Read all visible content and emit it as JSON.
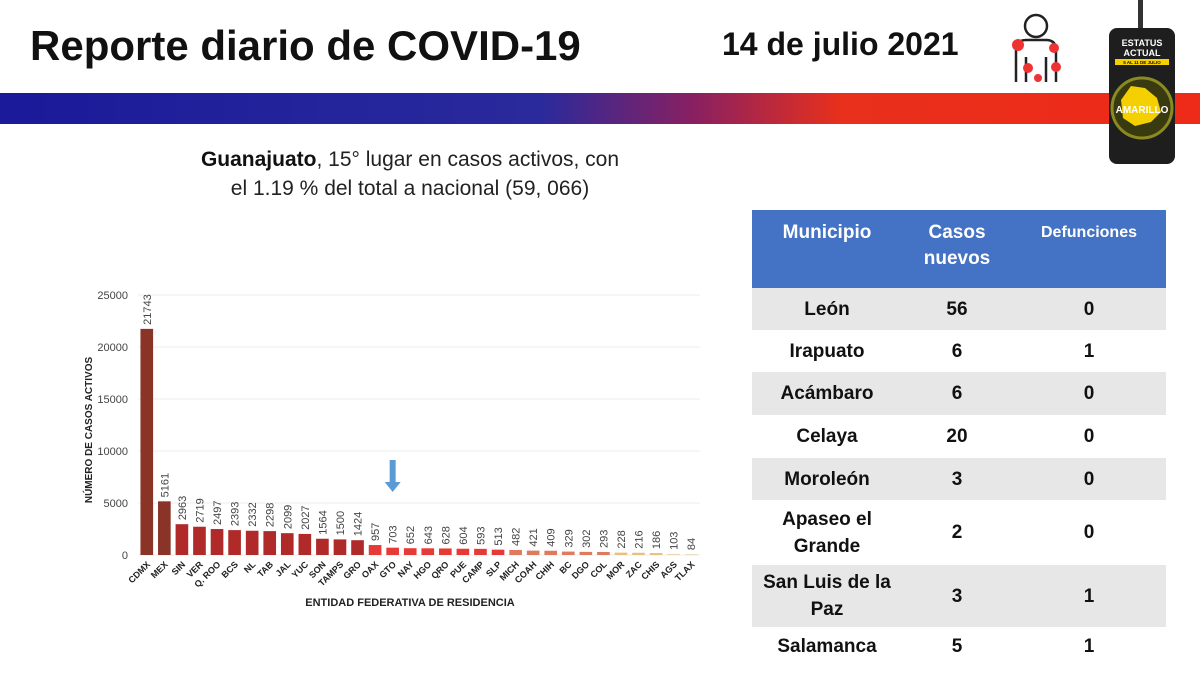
{
  "header": {
    "title": "Reporte diario de COVID-19",
    "date": "14 de julio 2021"
  },
  "status": {
    "heading": "ESTATUS ACTUAL",
    "period": "5 AL 11 DE JULIO",
    "level": "AMARILLO",
    "color": "#f5d000"
  },
  "summary": {
    "state": "Guanajuato",
    "text": ", 15° lugar en casos activos, con el 1.19 % del total a nacional (59, 066)"
  },
  "chart_data": {
    "type": "bar",
    "xlabel": "ENTIDAD FEDERATIVA DE RESIDENCIA",
    "ylabel": "NÚMERO DE CASOS ACTIVOS",
    "ylim": [
      0,
      25000
    ],
    "yticks": [
      "0",
      "5000",
      "10000",
      "15000",
      "20000",
      "25000"
    ],
    "grid": true,
    "highlight": "GTO",
    "categories": [
      "CDMX",
      "MEX",
      "SIN",
      "VER",
      "Q. ROO",
      "BCS",
      "NL",
      "TAB",
      "JAL",
      "YUC",
      "SON",
      "TAMPS",
      "GRO",
      "OAX",
      "GTO",
      "NAY",
      "HGO",
      "QRO",
      "PUE",
      "CAMP",
      "SLP",
      "MICH",
      "COAH",
      "CHIH",
      "BC",
      "DGO",
      "COL",
      "MOR",
      "ZAC",
      "CHIS",
      "AGS",
      "TLAX"
    ],
    "values": [
      21743,
      5161,
      2963,
      2719,
      2497,
      2393,
      2332,
      2298,
      2099,
      2027,
      1564,
      1500,
      1424,
      957,
      703,
      652,
      643,
      628,
      604,
      593,
      513,
      482,
      421,
      409,
      329,
      302,
      293,
      228,
      216,
      186,
      103,
      84
    ]
  },
  "table": {
    "headers": [
      "Municipio",
      "Casos nuevos",
      "Defunciones"
    ],
    "rows": [
      [
        "León",
        "56",
        "0"
      ],
      [
        "Irapuato",
        "6",
        "1"
      ],
      [
        "Acámbaro",
        "6",
        "0"
      ],
      [
        "Celaya",
        "20",
        "0"
      ],
      [
        "Moroleón",
        "3",
        "0"
      ],
      [
        "Apaseo el Grande",
        "2",
        "0"
      ],
      [
        "San Luis de la Paz",
        "3",
        "1"
      ],
      [
        "Salamanca",
        "5",
        "1"
      ]
    ]
  }
}
